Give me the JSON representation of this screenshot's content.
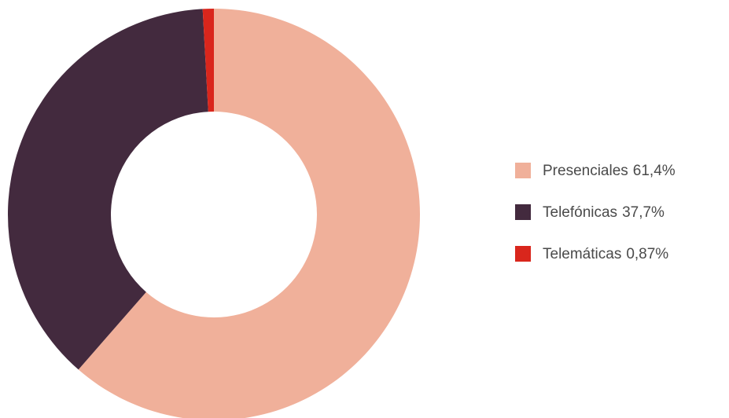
{
  "chart_data": {
    "type": "pie",
    "categories": [
      "Presenciales",
      "Telefónicas",
      "Telemáticas"
    ],
    "values": [
      61.4,
      37.7,
      0.87
    ],
    "value_labels": [
      "61,4%",
      "37,7%",
      "0,87%"
    ],
    "colors": [
      "#f0b09a",
      "#432a3e",
      "#d9261c"
    ],
    "legend": "right"
  }
}
